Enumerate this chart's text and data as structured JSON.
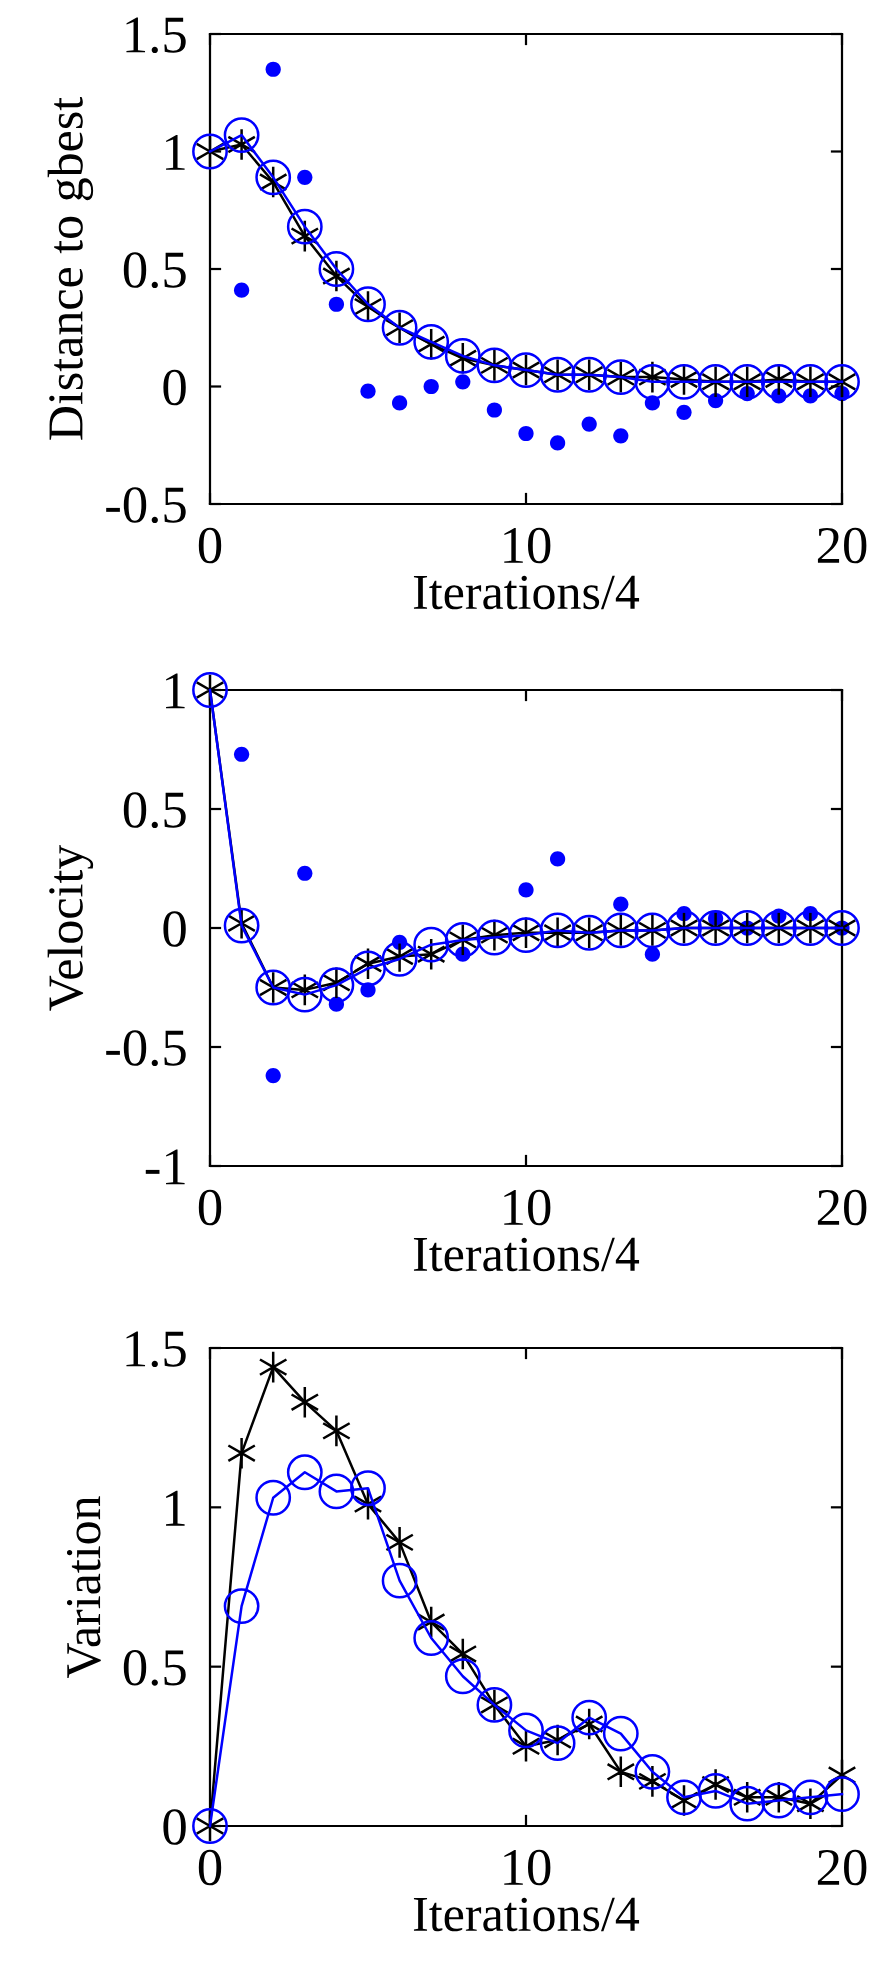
{
  "chart_data": [
    {
      "type": "line",
      "xlabel": "Iterations/4",
      "ylabel": "Distance to gbest",
      "x": [
        0,
        1,
        2,
        3,
        4,
        5,
        6,
        7,
        8,
        9,
        10,
        11,
        12,
        13,
        14,
        15,
        16,
        17,
        18,
        19,
        20
      ],
      "xlim": [
        0,
        20
      ],
      "xticks": [
        0,
        10,
        20
      ],
      "ylim": [
        -0.5,
        1.5
      ],
      "yticks": [
        -0.5,
        0,
        0.5,
        1,
        1.5
      ],
      "grid": false,
      "legend": false,
      "series": [
        {
          "type": "scatter",
          "color": "#0000ff",
          "marker": "circle",
          "values": [
            null,
            0.41,
            1.35,
            0.89,
            0.35,
            -0.02,
            -0.07,
            0.0,
            0.02,
            -0.1,
            -0.2,
            -0.24,
            -0.16,
            -0.21,
            -0.07,
            -0.11,
            -0.06,
            -0.03,
            -0.04,
            -0.04,
            -0.03
          ]
        },
        {
          "type": "line",
          "color": "#000000",
          "marker": "cross",
          "values": [
            1.0,
            1.03,
            0.87,
            0.64,
            0.47,
            0.34,
            0.25,
            0.18,
            0.12,
            0.09,
            0.07,
            0.05,
            0.05,
            0.04,
            0.04,
            0.03,
            0.02,
            0.02,
            0.03,
            0.02,
            0.02
          ]
        },
        {
          "type": "line",
          "color": "#0000ff",
          "marker": "circle",
          "values": [
            1.0,
            1.07,
            0.89,
            0.68,
            0.5,
            0.35,
            0.25,
            0.19,
            0.13,
            0.09,
            0.07,
            0.05,
            0.05,
            0.04,
            0.02,
            0.02,
            0.02,
            0.02,
            0.02,
            0.02,
            0.02
          ]
        }
      ]
    },
    {
      "type": "line",
      "xlabel": "Iterations/4",
      "ylabel": "Velocity",
      "x": [
        0,
        1,
        2,
        3,
        4,
        5,
        6,
        7,
        8,
        9,
        10,
        11,
        12,
        13,
        14,
        15,
        16,
        17,
        18,
        19,
        20
      ],
      "xlim": [
        0,
        20
      ],
      "xticks": [
        0,
        10,
        20
      ],
      "ylim": [
        -1,
        1
      ],
      "yticks": [
        -1,
        -0.5,
        0,
        0.5,
        1
      ],
      "grid": false,
      "legend": false,
      "series": [
        {
          "type": "scatter",
          "color": "#0000ff",
          "marker": "circle",
          "values": [
            null,
            0.73,
            -0.62,
            0.23,
            -0.32,
            -0.26,
            -0.06,
            null,
            -0.11,
            null,
            0.16,
            0.29,
            null,
            0.1,
            -0.11,
            0.06,
            0.04,
            0.0,
            0.05,
            0.06,
            0.0
          ]
        },
        {
          "type": "line",
          "color": "#000000",
          "marker": "cross",
          "values": [
            1.0,
            0.02,
            -0.25,
            -0.26,
            -0.23,
            -0.15,
            -0.12,
            -0.11,
            -0.05,
            -0.03,
            -0.02,
            -0.02,
            -0.02,
            -0.01,
            -0.01,
            0.0,
            0.0,
            0.0,
            0.0,
            0.0,
            0.0
          ]
        },
        {
          "type": "line",
          "color": "#0000ff",
          "marker": "circle",
          "values": [
            1.0,
            0.01,
            -0.25,
            -0.28,
            -0.24,
            -0.17,
            -0.13,
            -0.07,
            -0.05,
            -0.04,
            -0.03,
            -0.01,
            -0.02,
            -0.01,
            -0.01,
            0.0,
            0.0,
            0.0,
            0.0,
            0.0,
            0.0
          ]
        }
      ]
    },
    {
      "type": "line",
      "xlabel": "Iterations/4",
      "ylabel": "Variation",
      "x": [
        0,
        1,
        2,
        3,
        4,
        5,
        6,
        7,
        8,
        9,
        10,
        11,
        12,
        13,
        14,
        15,
        16,
        17,
        18,
        19,
        20
      ],
      "xlim": [
        0,
        20
      ],
      "xticks": [
        0,
        10,
        20
      ],
      "ylim": [
        0,
        1.5
      ],
      "yticks": [
        0,
        0.5,
        1,
        1.5
      ],
      "grid": false,
      "legend": false,
      "series": [
        {
          "type": "line",
          "color": "#000000",
          "marker": "cross",
          "values": [
            0,
            1.17,
            1.44,
            1.33,
            1.24,
            1.01,
            0.89,
            0.64,
            0.54,
            0.38,
            0.25,
            0.27,
            0.32,
            0.17,
            0.14,
            0.08,
            0.13,
            0.09,
            0.09,
            0.07,
            0.16
          ]
        },
        {
          "type": "line",
          "color": "#0000ff",
          "marker": "circle",
          "values": [
            0,
            0.69,
            1.03,
            1.11,
            1.05,
            1.06,
            0.77,
            0.59,
            0.47,
            0.38,
            0.3,
            0.26,
            0.34,
            0.29,
            0.17,
            0.09,
            0.11,
            0.07,
            0.08,
            0.09,
            0.1
          ]
        }
      ]
    }
  ]
}
